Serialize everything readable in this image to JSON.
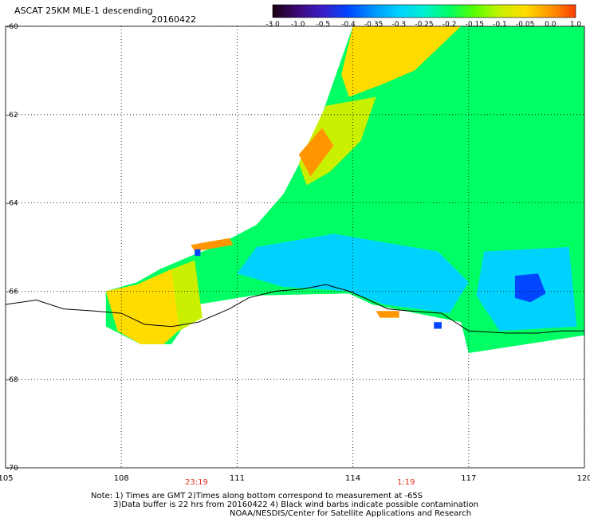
{
  "header": {
    "title": "ASCAT 25KM MLE-1 descending",
    "date": "20160422"
  },
  "colorbar": {
    "ticks": [
      "-3.0",
      "-1.0",
      "-0.5",
      "-0.4",
      "-0.35",
      "-0.3",
      "-0.25",
      "-0.2",
      "-0.15",
      "-0.1",
      "-0.05",
      "0.0",
      "1.0"
    ],
    "colors": [
      "#1a0010",
      "#3c0a78",
      "#3a1ec8",
      "#0046ff",
      "#0096ff",
      "#00d2ff",
      "#00f0d2",
      "#00ff64",
      "#5aff00",
      "#c8f000",
      "#ffdc00",
      "#ff9600",
      "#ff3c00"
    ]
  },
  "chart_data": {
    "type": "heatmap",
    "title": "ASCAT 25KM MLE-1 descending",
    "xlim": [
      105,
      120
    ],
    "ylim": [
      -70,
      -60
    ],
    "x_ticks": [
      "105",
      "108",
      "111",
      "114",
      "117",
      "120"
    ],
    "y_ticks": [
      "-60",
      "-62",
      "-64",
      "-66",
      "-68",
      "-70"
    ],
    "grid": true,
    "coastline_points": [
      [
        105.0,
        -66.3
      ],
      [
        105.8,
        -66.2
      ],
      [
        106.5,
        -66.4
      ],
      [
        107.3,
        -66.45
      ],
      [
        108.0,
        -66.5
      ],
      [
        108.6,
        -66.75
      ],
      [
        109.3,
        -66.8
      ],
      [
        110.0,
        -66.7
      ],
      [
        110.8,
        -66.4
      ],
      [
        111.3,
        -66.15
      ],
      [
        112.0,
        -66.0
      ],
      [
        112.7,
        -65.95
      ],
      [
        113.3,
        -65.85
      ],
      [
        113.9,
        -66.0
      ],
      [
        114.3,
        -66.15
      ],
      [
        114.9,
        -66.4
      ],
      [
        115.5,
        -66.45
      ],
      [
        116.3,
        -66.5
      ],
      [
        117.0,
        -66.9
      ],
      [
        118.0,
        -66.95
      ],
      [
        118.8,
        -66.95
      ],
      [
        119.4,
        -66.9
      ],
      [
        120.0,
        -66.9
      ]
    ],
    "swath_regions": [
      {
        "name": "main swath",
        "value": -0.2,
        "points": [
          [
            114.0,
            -60.0
          ],
          [
            120.0,
            -60.0
          ],
          [
            120.0,
            -67.0
          ],
          [
            117.0,
            -67.4
          ],
          [
            116.8,
            -66.7
          ],
          [
            114.5,
            -66.3
          ],
          [
            113.9,
            -66.05
          ],
          [
            111.4,
            -66.1
          ],
          [
            110.0,
            -66.3
          ],
          [
            109.3,
            -67.2
          ],
          [
            108.5,
            -67.2
          ],
          [
            107.6,
            -66.8
          ],
          [
            107.6,
            -66.0
          ],
          [
            108.4,
            -65.8
          ],
          [
            109.0,
            -65.5
          ],
          [
            109.8,
            -65.2
          ],
          [
            110.4,
            -65.0
          ],
          [
            111.5,
            -64.5
          ],
          [
            112.2,
            -63.8
          ],
          [
            112.8,
            -62.8
          ],
          [
            113.2,
            -62.0
          ],
          [
            113.6,
            -61.0
          ]
        ]
      },
      {
        "name": "warm west lobe",
        "value": -0.05,
        "points": [
          [
            107.6,
            -66.0
          ],
          [
            108.4,
            -65.85
          ],
          [
            109.3,
            -65.5
          ],
          [
            109.6,
            -66.8
          ],
          [
            109.1,
            -67.2
          ],
          [
            108.5,
            -67.2
          ],
          [
            107.9,
            -66.9
          ]
        ]
      },
      {
        "name": "west yellow rim",
        "value": -0.1,
        "points": [
          [
            109.3,
            -65.5
          ],
          [
            109.9,
            -65.3
          ],
          [
            110.1,
            -66.6
          ],
          [
            109.5,
            -66.9
          ]
        ]
      },
      {
        "name": "warm north block",
        "value": -0.05,
        "points": [
          [
            114.0,
            -60.0
          ],
          [
            116.8,
            -60.0
          ],
          [
            115.6,
            -61.0
          ],
          [
            114.8,
            -61.3
          ],
          [
            113.9,
            -61.6
          ],
          [
            113.7,
            -61.1
          ]
        ]
      },
      {
        "name": "warm north strip",
        "value": -0.1,
        "points": [
          [
            113.3,
            -61.8
          ],
          [
            114.6,
            -61.6
          ],
          [
            114.2,
            -62.6
          ],
          [
            113.4,
            -63.3
          ],
          [
            112.8,
            -63.6
          ],
          [
            112.6,
            -63.1
          ]
        ]
      },
      {
        "name": "orange northwest rim",
        "value": 0.0,
        "points": [
          [
            112.6,
            -62.9
          ],
          [
            113.2,
            -62.3
          ],
          [
            113.5,
            -62.7
          ],
          [
            112.9,
            -63.4
          ]
        ]
      },
      {
        "name": "small orange bands",
        "value": 0.0,
        "points": [
          [
            109.8,
            -64.95
          ],
          [
            110.8,
            -64.8
          ],
          [
            110.9,
            -64.95
          ],
          [
            109.9,
            -65.1
          ]
        ]
      },
      {
        "name": "cyan center",
        "value": -0.3,
        "points": [
          [
            111.5,
            -65.0
          ],
          [
            113.5,
            -64.7
          ],
          [
            116.2,
            -65.1
          ],
          [
            117.0,
            -65.8
          ],
          [
            116.5,
            -66.5
          ],
          [
            114.8,
            -66.3
          ],
          [
            113.9,
            -66.0
          ],
          [
            112.2,
            -65.9
          ],
          [
            111.0,
            -65.6
          ]
        ]
      },
      {
        "name": "cyan east",
        "value": -0.3,
        "points": [
          [
            117.4,
            -65.1
          ],
          [
            119.6,
            -65.0
          ],
          [
            119.8,
            -66.8
          ],
          [
            117.8,
            -66.9
          ],
          [
            117.2,
            -66.1
          ]
        ]
      },
      {
        "name": "blue core",
        "value": -0.4,
        "points": [
          [
            118.2,
            -65.65
          ],
          [
            118.8,
            -65.6
          ],
          [
            119.0,
            -66.05
          ],
          [
            118.6,
            -66.25
          ],
          [
            118.2,
            -66.15
          ]
        ]
      },
      {
        "name": "orange coastal patch",
        "value": 0.0,
        "points": [
          [
            114.6,
            -66.45
          ],
          [
            115.2,
            -66.45
          ],
          [
            115.2,
            -66.6
          ],
          [
            114.7,
            -66.6
          ]
        ]
      },
      {
        "name": "blue pixel west",
        "value": -0.4,
        "points": [
          [
            109.9,
            -65.05
          ],
          [
            110.05,
            -65.05
          ],
          [
            110.05,
            -65.2
          ],
          [
            109.9,
            -65.2
          ]
        ]
      },
      {
        "name": "blue pixel coast",
        "value": -0.4,
        "points": [
          [
            116.1,
            -66.7
          ],
          [
            116.3,
            -66.7
          ],
          [
            116.3,
            -66.85
          ],
          [
            116.1,
            -66.85
          ]
        ]
      }
    ]
  },
  "time_labels": [
    "23:19",
    "1:19"
  ],
  "footer": {
    "line1": "Note: 1) Times are GMT 2)Times along bottom correspond to measurement at -65S",
    "line2": "3)Data buffer is 22 hrs from 20160422 4) Black wind barbs indicate possible contamination",
    "line3": "NOAA/NESDIS/Center for Satellite Applications and Research"
  }
}
